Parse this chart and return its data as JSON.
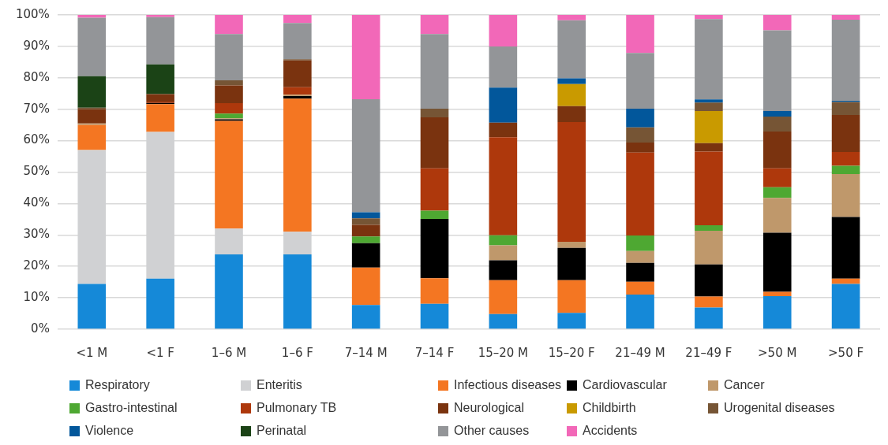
{
  "chart_data": {
    "type": "bar",
    "stacked": true,
    "grid": "y",
    "legend": "bottom",
    "categories": [
      "<1 M",
      "<1 F",
      "1–6 M",
      "1–6 F",
      "7–14 M",
      "7–14 F",
      "15–20 M",
      "15–20 F",
      "21–49 M",
      "21–49 F",
      ">50 M",
      ">50 F"
    ],
    "ylim": [
      0,
      100
    ],
    "yticks": [
      {
        "value": 0,
        "label": "0%"
      },
      {
        "value": 10,
        "label": "10%"
      },
      {
        "value": 20,
        "label": "20%"
      },
      {
        "value": 30,
        "label": "30%"
      },
      {
        "value": 40,
        "label": "40%"
      },
      {
        "value": 50,
        "label": "50%"
      },
      {
        "value": 60,
        "label": "60%"
      },
      {
        "value": 70,
        "label": "70%"
      },
      {
        "value": 80,
        "label": "80%"
      },
      {
        "value": 90,
        "label": "90%"
      },
      {
        "value": 100,
        "label": "100%"
      }
    ],
    "series": [
      {
        "name": "Respiratory",
        "color": "#1589d8",
        "values": [
          14.4,
          16.1,
          23.8,
          23.8,
          7.7,
          8.1,
          4.8,
          5.2,
          11,
          6.9,
          10.5,
          14.4
        ]
      },
      {
        "name": "Enteritis",
        "color": "#d0d1d3",
        "values": [
          42.6,
          46.7,
          8.2,
          7.2,
          0,
          0,
          0,
          0,
          0,
          0,
          0,
          0
        ]
      },
      {
        "name": "Infectious diseases",
        "color": "#f47622",
        "values": [
          8,
          8.8,
          34.3,
          42.4,
          11.9,
          8.1,
          10.8,
          10.4,
          4.1,
          3.5,
          1.4,
          1.7
        ]
      },
      {
        "name": "Cardiovascular",
        "color": "#000000",
        "values": [
          0,
          0.4,
          0.5,
          0.8,
          7.8,
          18.9,
          6.3,
          10.3,
          6,
          10.2,
          18.8,
          19.6
        ]
      },
      {
        "name": "Cancer",
        "color": "#bf986b",
        "values": [
          0.5,
          0,
          0.3,
          0.4,
          0,
          0,
          4.8,
          1.9,
          3.8,
          10.7,
          11.1,
          13.7
        ]
      },
      {
        "name": "Gastro-intestinal",
        "color": "#4ea832",
        "values": [
          0,
          0,
          1.5,
          0,
          2.1,
          2.6,
          3.2,
          0,
          4.9,
          1.8,
          3.4,
          2.6
        ]
      },
      {
        "name": "Pulmonary TB",
        "color": "#ae380c",
        "values": [
          0,
          0.4,
          3.3,
          2.4,
          0,
          13.5,
          31.2,
          38.1,
          26.4,
          23.4,
          6,
          4.4
        ]
      },
      {
        "name": "Neurological",
        "color": "#7a330f",
        "values": [
          4.5,
          2.4,
          5.7,
          8.5,
          3.7,
          16.2,
          4.6,
          5.1,
          3.2,
          2.7,
          11.7,
          11.8
        ]
      },
      {
        "name": "Childbirth",
        "color": "#c99a00",
        "values": [
          0,
          0,
          0,
          0,
          0,
          0,
          0,
          7,
          0,
          10.2,
          0,
          0
        ]
      },
      {
        "name": "Urogenital diseases",
        "color": "#765535",
        "values": [
          0.5,
          0,
          1.6,
          0.4,
          2.1,
          2.8,
          0,
          0,
          4.8,
          2.7,
          4.8,
          4.1
        ]
      },
      {
        "name": "Violence",
        "color": "#02579b",
        "values": [
          0,
          0,
          0,
          0,
          1.9,
          0,
          11.2,
          1.8,
          6,
          1,
          1.7,
          0.4
        ]
      },
      {
        "name": "Perinatal",
        "color": "#1b4316",
        "values": [
          10,
          9.5,
          0,
          0,
          0,
          0,
          0,
          0,
          0,
          0,
          0,
          0
        ]
      },
      {
        "name": "Other causes",
        "color": "#939598",
        "values": [
          18.6,
          15,
          14.7,
          11.5,
          36,
          23.7,
          13.1,
          18.5,
          17.7,
          25.6,
          25.7,
          25.8
        ]
      },
      {
        "name": "Accidents",
        "color": "#f268b8",
        "values": [
          0.9,
          0.7,
          6.1,
          2.6,
          26.8,
          6.1,
          10,
          1.7,
          12.1,
          1.3,
          4.9,
          1.5
        ]
      }
    ]
  }
}
